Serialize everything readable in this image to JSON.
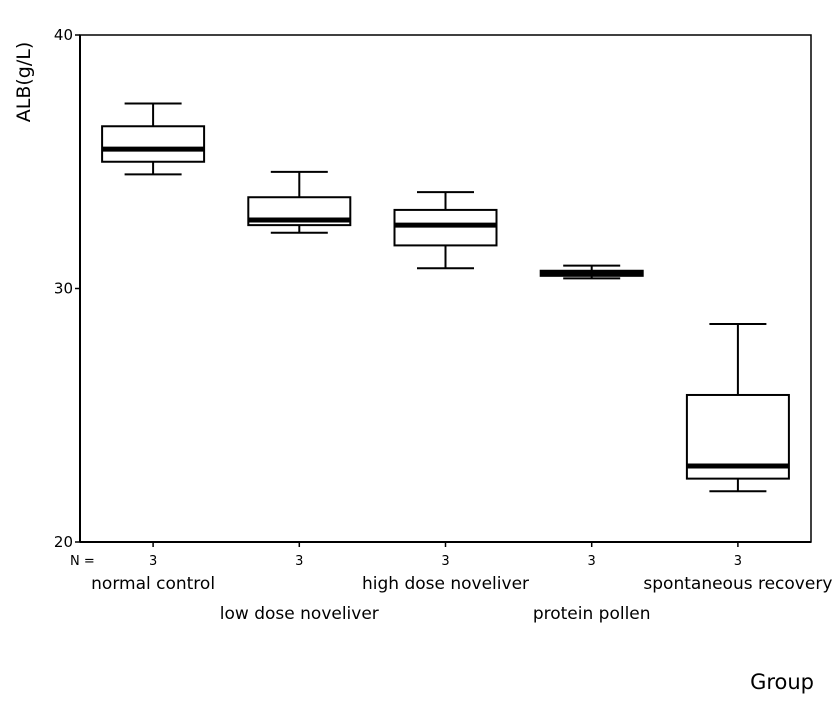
{
  "chart_data": {
    "type": "box",
    "title": "",
    "ylabel": "ALB(g/L)",
    "xlabel": "Group",
    "ylim": [
      20,
      40
    ],
    "yticks": [
      20,
      30,
      40
    ],
    "n_prefix": "N =",
    "grid": false,
    "legend": "none",
    "categories": [
      "normal control",
      "low dose noveliver",
      "high dose noveliver",
      "protein pollen",
      "spontaneous recovery"
    ],
    "n": [
      "3",
      "3",
      "3",
      "3",
      "3"
    ],
    "boxes": [
      {
        "whisker_low": 34.5,
        "q1": 35.0,
        "median": 35.5,
        "q3": 36.4,
        "whisker_high": 37.3
      },
      {
        "whisker_low": 32.2,
        "q1": 32.5,
        "median": 32.7,
        "q3": 33.6,
        "whisker_high": 34.6
      },
      {
        "whisker_low": 30.8,
        "q1": 31.7,
        "median": 32.5,
        "q3": 33.1,
        "whisker_high": 33.8
      },
      {
        "whisker_low": 30.4,
        "q1": 30.5,
        "median": 30.6,
        "q3": 30.7,
        "whisker_high": 30.9
      },
      {
        "whisker_low": 22.0,
        "q1": 22.5,
        "median": 23.0,
        "q3": 25.8,
        "whisker_high": 28.6
      }
    ]
  }
}
